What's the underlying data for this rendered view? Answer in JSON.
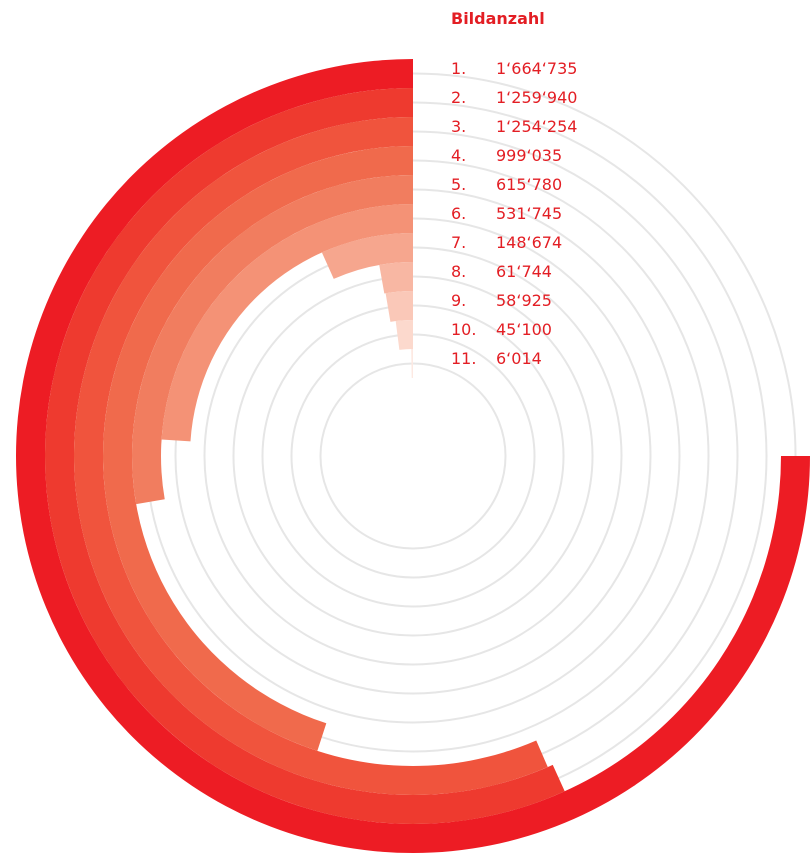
{
  "chart_data": {
    "type": "radial-bar",
    "title": "Bildanzahl",
    "ranks": [
      "1.",
      "2.",
      "3.",
      "4.",
      "5.",
      "6.",
      "7.",
      "8.",
      "9.",
      "10.",
      "11."
    ],
    "labels": [
      "1‘664‘735",
      "1‘259‘940",
      "1‘254‘254",
      "999‘035",
      "615‘780",
      "531‘745",
      "148‘674",
      "61‘744",
      "58‘925",
      "45‘100",
      "6‘014"
    ],
    "values": [
      1664735,
      1259940,
      1254254,
      999035,
      615780,
      531745,
      148674,
      61744,
      58925,
      45100,
      6014
    ],
    "max": 1664735,
    "colors": [
      "#ed1c24",
      "#ee3a2f",
      "#f0543d",
      "#f06a4c",
      "#f17d5f",
      "#f49276",
      "#f6a68e",
      "#f8b7a3",
      "#fac8b8",
      "#fcd9cd",
      "#fde9e2"
    ],
    "track_color": "#e6e6e6"
  }
}
